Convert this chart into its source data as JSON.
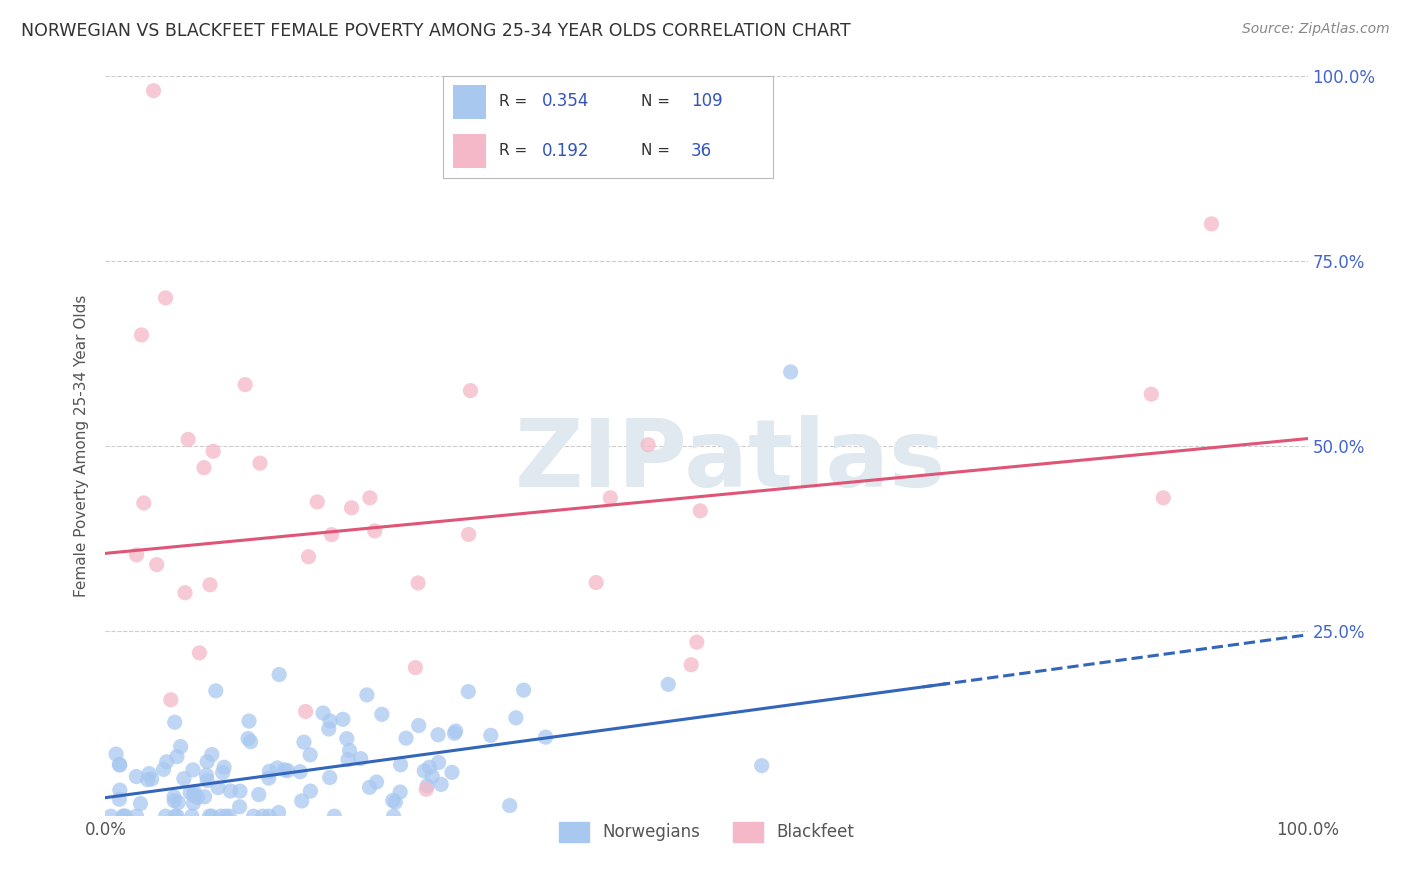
{
  "title": "NORWEGIAN VS BLACKFEET FEMALE POVERTY AMONG 25-34 YEAR OLDS CORRELATION CHART",
  "source": "Source: ZipAtlas.com",
  "ylabel": "Female Poverty Among 25-34 Year Olds",
  "norwegian_R": 0.354,
  "norwegian_N": 109,
  "blackfeet_R": 0.192,
  "blackfeet_N": 36,
  "norwegian_color": "#a8c8f0",
  "blackfeet_color": "#f5b8c8",
  "norwegian_line_color": "#3366bb",
  "blackfeet_line_color": "#e05575",
  "legend_text_color": "#3355bb",
  "tick_color": "#4466cc",
  "watermark_color": "#e0e8f0",
  "background_color": "#ffffff",
  "grid_color": "#cccccc",
  "nor_intercept": 0.025,
  "nor_slope": 0.22,
  "blk_intercept": 0.355,
  "blk_slope": 0.155
}
